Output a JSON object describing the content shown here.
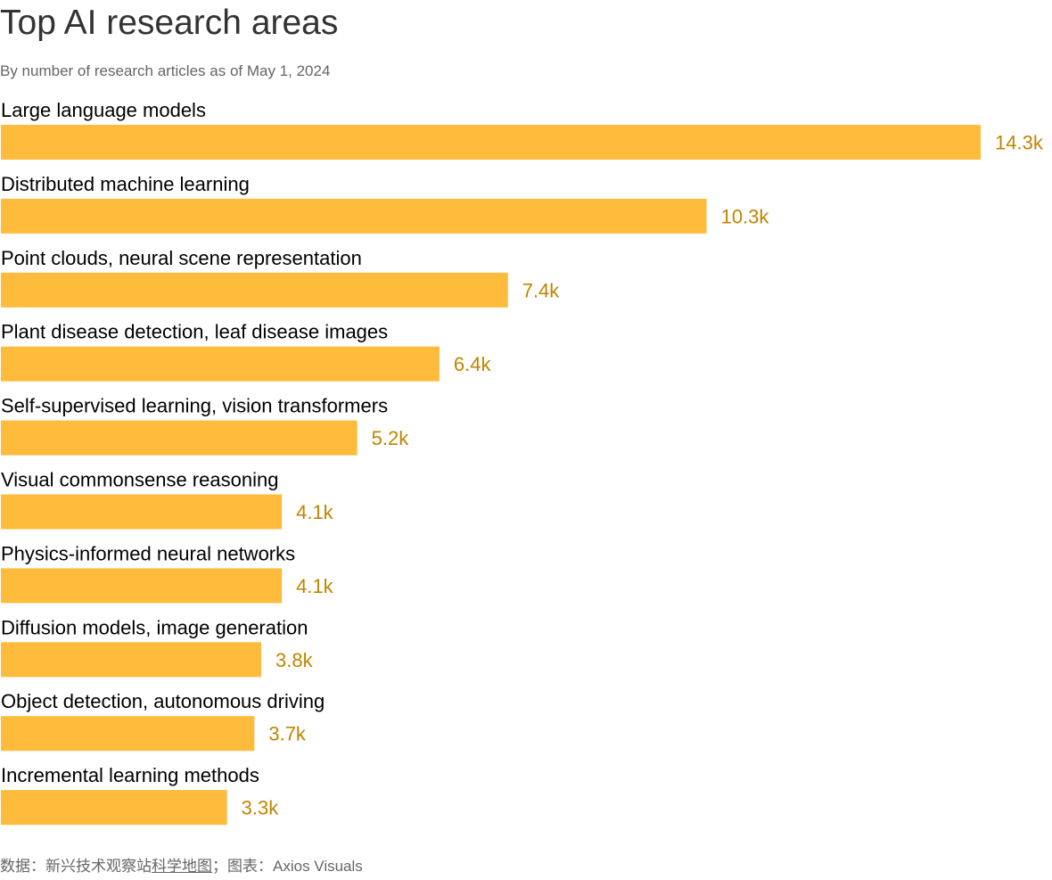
{
  "chart_data": {
    "type": "bar",
    "orientation": "horizontal",
    "title": "Top AI research areas",
    "subtitle": "By number of research articles as of May 1, 2024",
    "categories": [
      "Large language models",
      "Distributed machine learning",
      "Point clouds, neural scene representation",
      "Plant disease detection, leaf disease images",
      "Self-supervised learning, vision transformers",
      "Visual commonsense reasoning",
      "Physics-informed neural networks",
      "Diffusion models, image generation",
      "Object detection, autonomous driving",
      "Incremental learning methods"
    ],
    "values": [
      14300,
      10300,
      7400,
      6400,
      5200,
      4100,
      4100,
      3800,
      3700,
      3300
    ],
    "value_labels": [
      "14.3k",
      "10.3k",
      "7.4k",
      "6.4k",
      "5.2k",
      "4.1k",
      "4.1k",
      "3.8k",
      "3.7k",
      "3.3k"
    ],
    "xlim": [
      0,
      14300
    ],
    "xlabel": "",
    "ylabel": "",
    "grid": false
  },
  "colors": {
    "bar": "#ffbb3b",
    "value_label": "#c08500"
  },
  "footer": {
    "data_prefix": "数据：新兴技术观察站",
    "data_link": "科学地图",
    "chart_credit": "；图表：Axios Visuals"
  }
}
